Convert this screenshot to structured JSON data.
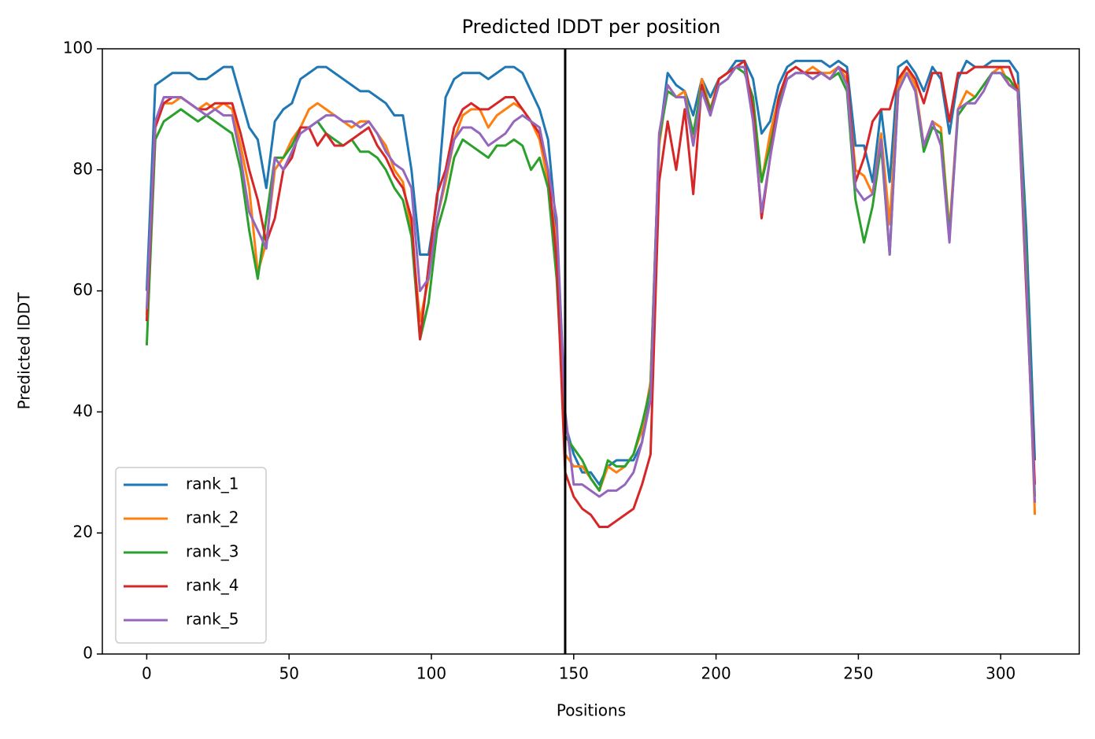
{
  "chart_data": {
    "type": "line",
    "title": "Predicted lDDT per position",
    "xlabel": "Positions",
    "ylabel": "Predicted lDDT",
    "x": [
      0,
      3,
      6,
      9,
      12,
      15,
      18,
      21,
      24,
      27,
      30,
      33,
      36,
      39,
      42,
      45,
      48,
      51,
      54,
      57,
      60,
      63,
      66,
      69,
      72,
      75,
      78,
      81,
      84,
      87,
      90,
      93,
      96,
      99,
      102,
      105,
      108,
      111,
      114,
      117,
      120,
      123,
      126,
      129,
      132,
      135,
      138,
      141,
      144,
      147,
      150,
      153,
      156,
      159,
      162,
      165,
      168,
      171,
      174,
      177,
      180,
      183,
      186,
      189,
      192,
      195,
      198,
      201,
      204,
      207,
      210,
      213,
      216,
      219,
      222,
      225,
      228,
      231,
      234,
      237,
      240,
      243,
      246,
      249,
      252,
      255,
      258,
      261,
      264,
      267,
      270,
      273,
      276,
      279,
      282,
      285,
      288,
      291,
      294,
      297,
      300,
      303,
      306,
      309,
      312
    ],
    "series": [
      {
        "name": "rank_1",
        "color": "#1f77b4",
        "values": [
          60,
          94,
          95,
          96,
          96,
          96,
          95,
          95,
          96,
          97,
          97,
          92,
          87,
          85,
          77,
          88,
          90,
          91,
          95,
          96,
          97,
          97,
          96,
          95,
          94,
          93,
          93,
          92,
          91,
          89,
          89,
          80,
          66,
          66,
          75,
          92,
          95,
          96,
          96,
          96,
          95,
          96,
          97,
          97,
          96,
          93,
          90,
          85,
          70,
          38,
          33,
          30,
          30,
          28,
          31,
          32,
          32,
          32,
          35,
          45,
          85,
          96,
          94,
          93,
          89,
          95,
          92,
          95,
          96,
          98,
          98,
          95,
          86,
          88,
          94,
          97,
          98,
          98,
          98,
          98,
          97,
          98,
          97,
          84,
          84,
          78,
          90,
          78,
          97,
          98,
          96,
          93,
          97,
          95,
          86,
          95,
          98,
          97,
          97,
          98,
          98,
          98,
          96,
          70,
          32
        ]
      },
      {
        "name": "rank_2",
        "color": "#ff7f0e",
        "values": [
          56,
          88,
          91,
          91,
          92,
          91,
          90,
          91,
          90,
          91,
          90,
          84,
          77,
          63,
          68,
          80,
          82,
          85,
          87,
          90,
          91,
          90,
          89,
          88,
          87,
          88,
          88,
          86,
          84,
          80,
          78,
          70,
          55,
          62,
          72,
          78,
          85,
          89,
          90,
          90,
          87,
          89,
          90,
          91,
          90,
          88,
          85,
          78,
          68,
          33,
          31,
          31,
          29,
          27,
          31,
          30,
          31,
          33,
          37,
          45,
          84,
          94,
          92,
          93,
          85,
          95,
          90,
          95,
          96,
          97,
          97,
          90,
          78,
          86,
          92,
          96,
          97,
          96,
          97,
          96,
          96,
          97,
          95,
          80,
          79,
          76,
          86,
          71,
          94,
          97,
          94,
          84,
          88,
          87,
          70,
          90,
          93,
          92,
          94,
          96,
          97,
          94,
          94,
          65,
          23
        ]
      },
      {
        "name": "rank_3",
        "color": "#2ca02c",
        "values": [
          51,
          85,
          88,
          89,
          90,
          89,
          88,
          89,
          88,
          87,
          86,
          80,
          70,
          62,
          72,
          82,
          82,
          84,
          87,
          87,
          88,
          86,
          85,
          84,
          85,
          83,
          83,
          82,
          80,
          77,
          75,
          69,
          52,
          58,
          70,
          75,
          82,
          85,
          84,
          83,
          82,
          84,
          84,
          85,
          84,
          80,
          82,
          77,
          62,
          36,
          34,
          32,
          29,
          27,
          32,
          31,
          31,
          33,
          38,
          44,
          85,
          93,
          92,
          92,
          86,
          94,
          90,
          94,
          95,
          97,
          96,
          92,
          78,
          84,
          91,
          95,
          96,
          96,
          96,
          96,
          95,
          96,
          93,
          75,
          68,
          74,
          84,
          66,
          93,
          96,
          93,
          83,
          87,
          86,
          69,
          89,
          91,
          92,
          94,
          96,
          96,
          95,
          93,
          65,
          26
        ]
      },
      {
        "name": "rank_4",
        "color": "#d62728",
        "values": [
          55,
          87,
          91,
          92,
          92,
          91,
          90,
          90,
          91,
          91,
          91,
          86,
          80,
          75,
          68,
          72,
          80,
          82,
          87,
          87,
          84,
          86,
          84,
          84,
          85,
          86,
          87,
          84,
          82,
          79,
          77,
          72,
          52,
          64,
          76,
          80,
          87,
          90,
          91,
          90,
          90,
          91,
          92,
          92,
          90,
          88,
          86,
          80,
          65,
          30,
          26,
          24,
          23,
          21,
          21,
          22,
          23,
          24,
          28,
          33,
          78,
          88,
          80,
          90,
          76,
          94,
          89,
          95,
          96,
          97,
          98,
          90,
          72,
          82,
          92,
          96,
          97,
          96,
          96,
          96,
          95,
          97,
          96,
          78,
          82,
          88,
          90,
          90,
          95,
          97,
          95,
          91,
          96,
          96,
          88,
          96,
          96,
          97,
          97,
          97,
          97,
          97,
          93,
          60,
          28
        ]
      },
      {
        "name": "rank_5",
        "color": "#9467bd",
        "values": [
          57,
          88,
          92,
          92,
          92,
          91,
          90,
          89,
          90,
          89,
          89,
          82,
          73,
          70,
          67,
          82,
          80,
          83,
          86,
          87,
          88,
          89,
          89,
          88,
          88,
          87,
          88,
          86,
          83,
          81,
          80,
          77,
          60,
          62,
          72,
          79,
          85,
          87,
          87,
          86,
          84,
          85,
          86,
          88,
          89,
          88,
          87,
          80,
          72,
          40,
          28,
          28,
          27,
          26,
          27,
          27,
          28,
          30,
          35,
          42,
          86,
          94,
          92,
          92,
          84,
          93,
          89,
          94,
          95,
          97,
          97,
          88,
          73,
          82,
          90,
          95,
          96,
          96,
          95,
          96,
          95,
          97,
          94,
          77,
          75,
          76,
          85,
          66,
          93,
          96,
          93,
          84,
          88,
          84,
          68,
          90,
          91,
          91,
          93,
          96,
          96,
          94,
          93,
          62,
          25
        ]
      }
    ],
    "xlim": [
      -15.6,
      327.6
    ],
    "xticks": [
      0,
      50,
      100,
      150,
      200,
      250,
      300
    ],
    "ylim": [
      0,
      100
    ],
    "yticks": [
      0,
      20,
      40,
      60,
      80,
      100
    ],
    "vline": 147,
    "legend": "lower left",
    "grid": false
  }
}
